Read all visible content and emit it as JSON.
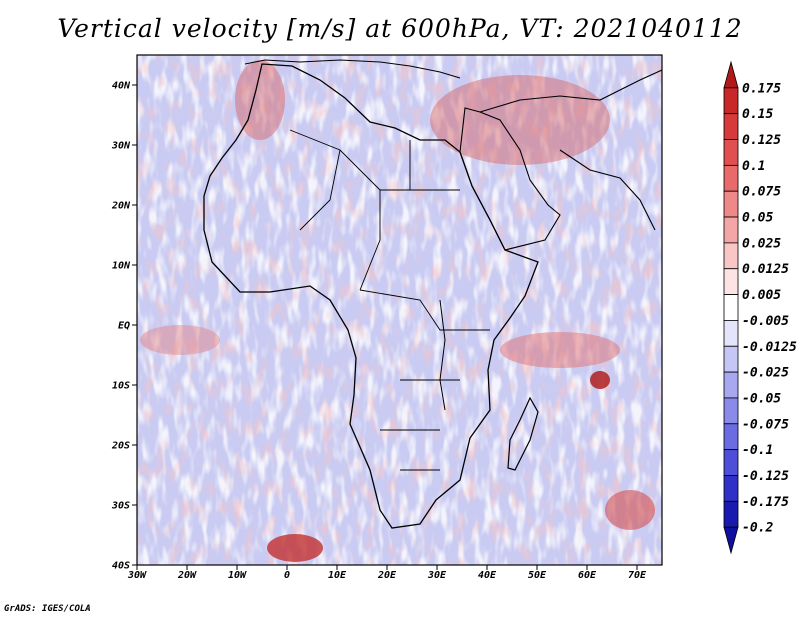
{
  "title": "Vertical velocity [m/s] at 600hPa, VT: 2021040112",
  "credit": "GrADS: IGES/COLA",
  "map": {
    "lon_range": [
      -30,
      75
    ],
    "lat_range": [
      -40,
      45
    ],
    "lat_ticks": [
      {
        "value": 40,
        "label": "40N"
      },
      {
        "value": 30,
        "label": "30N"
      },
      {
        "value": 20,
        "label": "20N"
      },
      {
        "value": 10,
        "label": "10N"
      },
      {
        "value": 0,
        "label": "EQ"
      },
      {
        "value": -10,
        "label": "10S"
      },
      {
        "value": -20,
        "label": "20S"
      },
      {
        "value": -30,
        "label": "30S"
      },
      {
        "value": -40,
        "label": "40S"
      }
    ],
    "lon_ticks": [
      {
        "value": -30,
        "label": "30W"
      },
      {
        "value": -20,
        "label": "20W"
      },
      {
        "value": -10,
        "label": "10W"
      },
      {
        "value": 0,
        "label": "0"
      },
      {
        "value": 10,
        "label": "10E"
      },
      {
        "value": 20,
        "label": "20E"
      },
      {
        "value": 30,
        "label": "30E"
      },
      {
        "value": 40,
        "label": "40E"
      },
      {
        "value": 50,
        "label": "50E"
      },
      {
        "value": 60,
        "label": "60E"
      },
      {
        "value": 70,
        "label": "70E"
      }
    ],
    "background_color": "#c9cbf2",
    "coastline_color": "#000000"
  },
  "colorbar": {
    "levels": [
      "0.175",
      "0.15",
      "0.125",
      "0.1",
      "0.075",
      "0.05",
      "0.025",
      "0.0125",
      "0.005",
      "-0.005",
      "-0.0125",
      "-0.025",
      "-0.05",
      "-0.075",
      "-0.1",
      "-0.125",
      "-0.175",
      "-0.2"
    ],
    "colors": [
      "#b21a1a",
      "#c82828",
      "#d63a3a",
      "#e05050",
      "#e86a6a",
      "#ef8888",
      "#f4a6a6",
      "#f9c6c6",
      "#fde4e4",
      "#ffffff",
      "#e4e4fb",
      "#c6c6f6",
      "#a8a8f0",
      "#8a8aea",
      "#6c6ce2",
      "#4e4ed8",
      "#3030c8",
      "#1a1ab0",
      "#1010a0"
    ]
  }
}
